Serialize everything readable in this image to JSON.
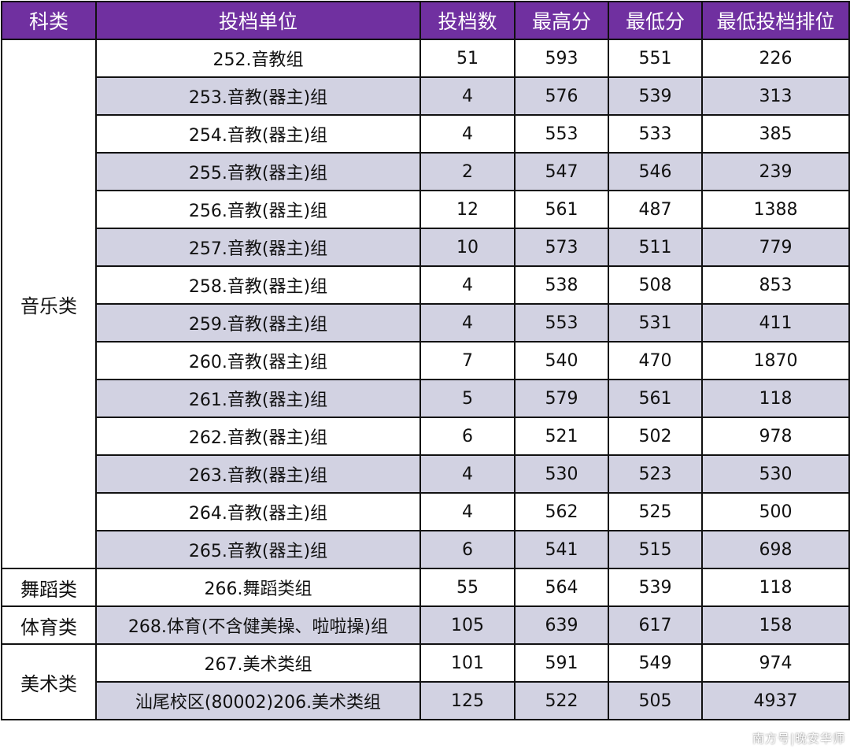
{
  "headers": [
    "科类",
    "投档单位",
    "投档数",
    "最高分",
    "最低分",
    "最低投档排位"
  ],
  "groups": [
    {
      "category": "音乐类",
      "rows": [
        [
          "252.音教组",
          "51",
          "593",
          "551",
          "226"
        ],
        [
          "253.音教(器主)组",
          "4",
          "576",
          "539",
          "313"
        ],
        [
          "254.音教(器主)组",
          "4",
          "553",
          "533",
          "385"
        ],
        [
          "255.音教(器主)组",
          "2",
          "547",
          "546",
          "239"
        ],
        [
          "256.音教(器主)组",
          "12",
          "561",
          "487",
          "1388"
        ],
        [
          "257.音教(器主)组",
          "10",
          "573",
          "511",
          "779"
        ],
        [
          "258.音教(器主)组",
          "4",
          "538",
          "508",
          "853"
        ],
        [
          "259.音教(器主)组",
          "4",
          "553",
          "531",
          "411"
        ],
        [
          "260.音教(器主)组",
          "7",
          "540",
          "470",
          "1870"
        ],
        [
          "261.音教(器主)组",
          "5",
          "579",
          "561",
          "118"
        ],
        [
          "262.音教(器主)组",
          "6",
          "521",
          "502",
          "978"
        ],
        [
          "263.音教(器主)组",
          "4",
          "530",
          "523",
          "530"
        ],
        [
          "264.音教(器主)组",
          "4",
          "562",
          "525",
          "500"
        ],
        [
          "265.音教(器主)组",
          "6",
          "541",
          "515",
          "698"
        ]
      ]
    },
    {
      "category": "舞蹈类",
      "rows": [
        [
          "266.舞蹈类组",
          "55",
          "564",
          "539",
          "118"
        ]
      ]
    },
    {
      "category": "体育类",
      "rows": [
        [
          "268.体育(不含健美操、啦啦操)组",
          "105",
          "639",
          "617",
          "158"
        ]
      ]
    },
    {
      "category": "美术类",
      "rows": [
        [
          "267.美术类组",
          "101",
          "591",
          "549",
          "974"
        ],
        [
          "汕尾校区(80002)206.美术类组",
          "125",
          "522",
          "505",
          "4937"
        ]
      ]
    }
  ],
  "colors": {
    "header_bg": "#7030a0",
    "alt_row": "#d2d2e2"
  },
  "watermark": "南方号|晚安华师"
}
